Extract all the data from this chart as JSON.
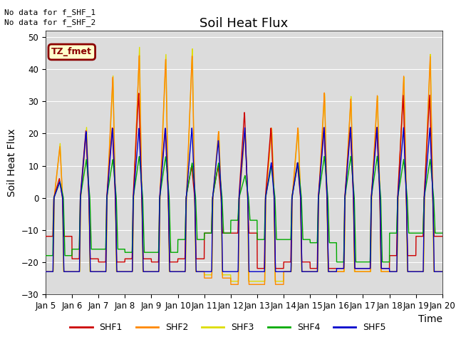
{
  "title": "Soil Heat Flux",
  "ylabel": "Soil Heat Flux",
  "xlabel": "Time",
  "ylim": [
    -30,
    52
  ],
  "yticks": [
    -30,
    -20,
    -10,
    0,
    10,
    20,
    30,
    40,
    50
  ],
  "annotation1": "No data for f_SHF_1",
  "annotation2": "No data for f_SHF_2",
  "tz_label": "TZ_fmet",
  "series_colors": {
    "SHF1": "#cc0000",
    "SHF2": "#ff8800",
    "SHF3": "#dddd00",
    "SHF4": "#00aa00",
    "SHF5": "#0000cc"
  },
  "background_color": "#dcdcdc",
  "fig_background": "#ffffff",
  "xtick_labels": [
    "Jan 5",
    "Jan 6",
    "Jan 7",
    "Jan 8",
    "Jan 9",
    "Jan 10",
    "Jan 11",
    "Jan 12",
    "Jan 13",
    "Jan 14",
    "Jan 15",
    "Jan 16",
    "Jan 17",
    "Jan 18",
    "Jan 19",
    "Jan 20"
  ],
  "title_fontsize": 13,
  "axis_label_fontsize": 10,
  "tick_fontsize": 8.5
}
